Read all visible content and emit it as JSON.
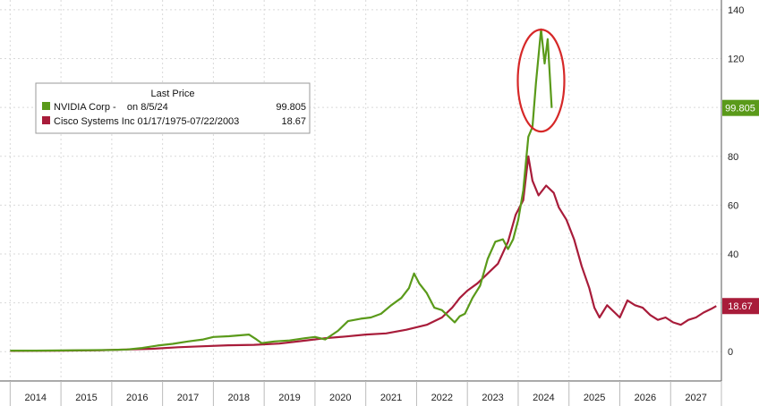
{
  "chart_data": {
    "type": "line",
    "title": "",
    "xlabel": "",
    "ylabel": "",
    "x_ticks": [
      "2014",
      "2015",
      "2016",
      "2017",
      "2018",
      "2019",
      "2020",
      "2021",
      "2022",
      "2023",
      "2024",
      "2025",
      "2026",
      "2027"
    ],
    "y_ticks": [
      0,
      20,
      40,
      60,
      80,
      100,
      120,
      140
    ],
    "ylim": [
      -12,
      144
    ],
    "grid": true,
    "legend": {
      "header": "Last Price",
      "placement": "top-left",
      "entries": [
        {
          "name": "NVIDIA Corp -    on 8/5/24",
          "value": "99.805",
          "color": "#5a9a1a"
        },
        {
          "name": "Cisco Systems Inc 01/17/1975-07/22/2003",
          "value": "18.67",
          "color": "#a81c3a"
        }
      ]
    },
    "last_value_labels": [
      {
        "text": "99.805",
        "value": 99.805,
        "color": "#5a9a1a"
      },
      {
        "text": "18.67",
        "value": 18.67,
        "color": "#a81c3a"
      }
    ],
    "annotation": {
      "type": "circle",
      "color": "#d62828",
      "around": "NVIDIA peak 2024"
    },
    "series": [
      {
        "name": "NVIDIA Corp -    on 8/5/24",
        "color": "#5a9a1a",
        "points": [
          [
            2014.0,
            0.4
          ],
          [
            2014.5,
            0.4
          ],
          [
            2015.0,
            0.5
          ],
          [
            2015.5,
            0.6
          ],
          [
            2016.0,
            0.7
          ],
          [
            2016.3,
            0.9
          ],
          [
            2016.6,
            1.5
          ],
          [
            2016.9,
            2.5
          ],
          [
            2017.2,
            3.2
          ],
          [
            2017.5,
            4.2
          ],
          [
            2017.8,
            5.0
          ],
          [
            2018.0,
            6.0
          ],
          [
            2018.3,
            6.3
          ],
          [
            2018.7,
            7.0
          ],
          [
            2018.85,
            5.0
          ],
          [
            2018.95,
            3.5
          ],
          [
            2019.2,
            4.2
          ],
          [
            2019.5,
            4.6
          ],
          [
            2019.8,
            5.5
          ],
          [
            2020.0,
            6.0
          ],
          [
            2020.2,
            5.0
          ],
          [
            2020.45,
            8.5
          ],
          [
            2020.65,
            12.5
          ],
          [
            2020.9,
            13.5
          ],
          [
            2021.1,
            14.0
          ],
          [
            2021.3,
            15.5
          ],
          [
            2021.5,
            19.0
          ],
          [
            2021.7,
            22.0
          ],
          [
            2021.85,
            26.0
          ],
          [
            2021.95,
            32.0
          ],
          [
            2022.05,
            28.0
          ],
          [
            2022.2,
            24.0
          ],
          [
            2022.35,
            18.0
          ],
          [
            2022.5,
            17.0
          ],
          [
            2022.65,
            14.0
          ],
          [
            2022.75,
            12.0
          ],
          [
            2022.85,
            14.5
          ],
          [
            2022.95,
            15.5
          ],
          [
            2023.1,
            22.0
          ],
          [
            2023.25,
            27.0
          ],
          [
            2023.4,
            38.0
          ],
          [
            2023.55,
            45.0
          ],
          [
            2023.7,
            46.0
          ],
          [
            2023.8,
            42.0
          ],
          [
            2023.9,
            46.0
          ],
          [
            2024.0,
            54.0
          ],
          [
            2024.1,
            66.0
          ],
          [
            2024.2,
            88.0
          ],
          [
            2024.28,
            92.0
          ],
          [
            2024.35,
            110.0
          ],
          [
            2024.45,
            132.0
          ],
          [
            2024.52,
            118.0
          ],
          [
            2024.58,
            128.0
          ],
          [
            2024.66,
            99.805
          ]
        ]
      },
      {
        "name": "Cisco Systems Inc 01/17/1975-07/22/2003",
        "color": "#a81c3a",
        "points": [
          [
            2014.0,
            0.3
          ],
          [
            2015.0,
            0.4
          ],
          [
            2015.8,
            0.6
          ],
          [
            2016.3,
            0.9
          ],
          [
            2016.8,
            1.2
          ],
          [
            2017.3,
            1.8
          ],
          [
            2017.8,
            2.2
          ],
          [
            2018.3,
            2.6
          ],
          [
            2018.8,
            2.8
          ],
          [
            2019.3,
            3.3
          ],
          [
            2019.8,
            4.5
          ],
          [
            2020.2,
            5.5
          ],
          [
            2020.6,
            6.2
          ],
          [
            2021.0,
            7.0
          ],
          [
            2021.4,
            7.5
          ],
          [
            2021.8,
            9.0
          ],
          [
            2022.2,
            11.0
          ],
          [
            2022.5,
            14.0
          ],
          [
            2022.7,
            18.0
          ],
          [
            2022.85,
            22.0
          ],
          [
            2023.0,
            25.0
          ],
          [
            2023.2,
            28.0
          ],
          [
            2023.4,
            32.0
          ],
          [
            2023.6,
            36.0
          ],
          [
            2023.8,
            45.0
          ],
          [
            2023.95,
            56.0
          ],
          [
            2024.1,
            62.0
          ],
          [
            2024.2,
            80.0
          ],
          [
            2024.28,
            70.0
          ],
          [
            2024.4,
            64.0
          ],
          [
            2024.55,
            68.0
          ],
          [
            2024.7,
            65.0
          ],
          [
            2024.8,
            59.0
          ],
          [
            2024.95,
            54.0
          ],
          [
            2025.1,
            46.0
          ],
          [
            2025.25,
            35.0
          ],
          [
            2025.4,
            26.0
          ],
          [
            2025.5,
            18.0
          ],
          [
            2025.6,
            14.0
          ],
          [
            2025.75,
            19.0
          ],
          [
            2025.9,
            16.0
          ],
          [
            2026.0,
            14.0
          ],
          [
            2026.15,
            21.0
          ],
          [
            2026.3,
            19.0
          ],
          [
            2026.45,
            18.0
          ],
          [
            2026.6,
            15.0
          ],
          [
            2026.75,
            13.0
          ],
          [
            2026.9,
            14.0
          ],
          [
            2027.05,
            12.0
          ],
          [
            2027.2,
            11.0
          ],
          [
            2027.35,
            13.0
          ],
          [
            2027.5,
            14.0
          ],
          [
            2027.65,
            16.0
          ],
          [
            2027.8,
            17.5
          ],
          [
            2027.9,
            18.67
          ]
        ]
      }
    ]
  }
}
